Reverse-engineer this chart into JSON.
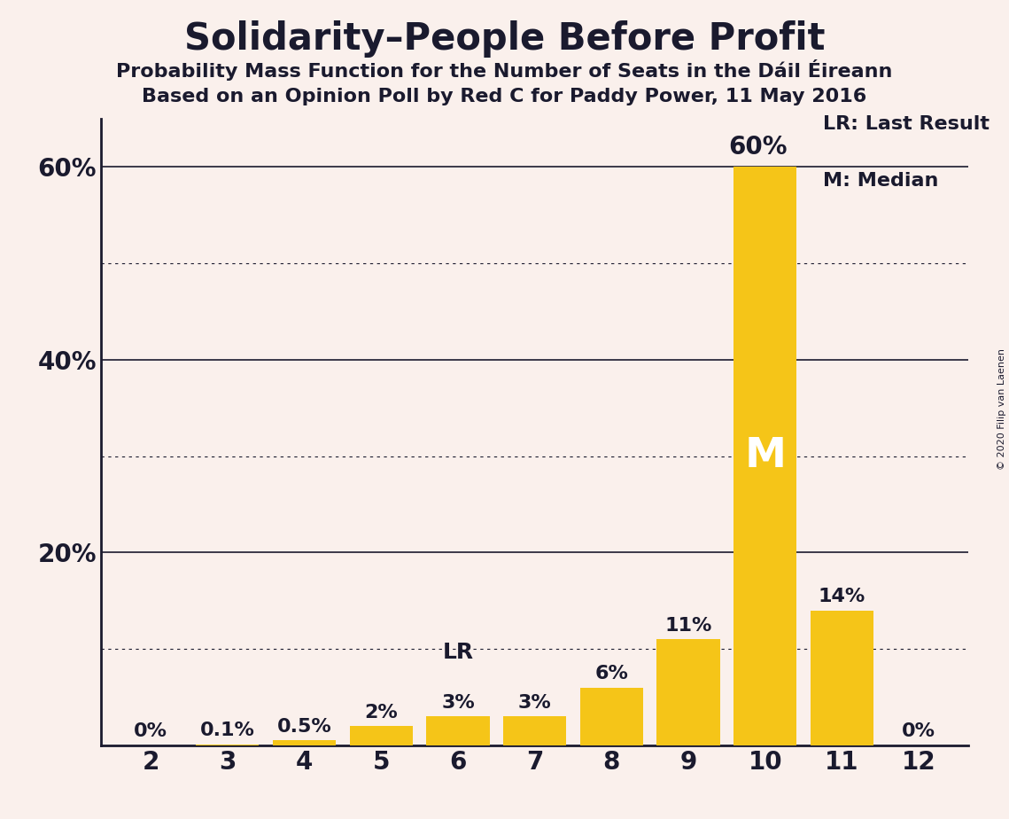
{
  "title": "Solidarity–People Before Profit",
  "subtitle1": "Probability Mass Function for the Number of Seats in the Dáil Éireann",
  "subtitle2": "Based on an Opinion Poll by Red C for Paddy Power, 11 May 2016",
  "copyright": "© 2020 Filip van Laenen",
  "categories": [
    2,
    3,
    4,
    5,
    6,
    7,
    8,
    9,
    10,
    11,
    12
  ],
  "values": [
    0.0,
    0.1,
    0.5,
    2.0,
    3.0,
    3.0,
    6.0,
    11.0,
    60.0,
    14.0,
    0.0
  ],
  "labels": [
    "0%",
    "0.1%",
    "0.5%",
    "2%",
    "3%",
    "3%",
    "6%",
    "11%",
    "60%",
    "14%",
    "0%"
  ],
  "bar_color": "#F5C518",
  "background_color": "#FAF0EC",
  "text_color": "#1a1a2e",
  "median_bar": 10,
  "last_result_bar": 6,
  "median_label": "M",
  "lr_label": "LR",
  "legend_lr": "LR: Last Result",
  "legend_m": "M: Median",
  "ylim_max": 65,
  "solid_gridlines": [
    20,
    40,
    60
  ],
  "dotted_gridlines": [
    10,
    30,
    50
  ],
  "ytick_vals": [
    20,
    40,
    60
  ],
  "ytick_labels": [
    "20%",
    "40%",
    "60%"
  ]
}
